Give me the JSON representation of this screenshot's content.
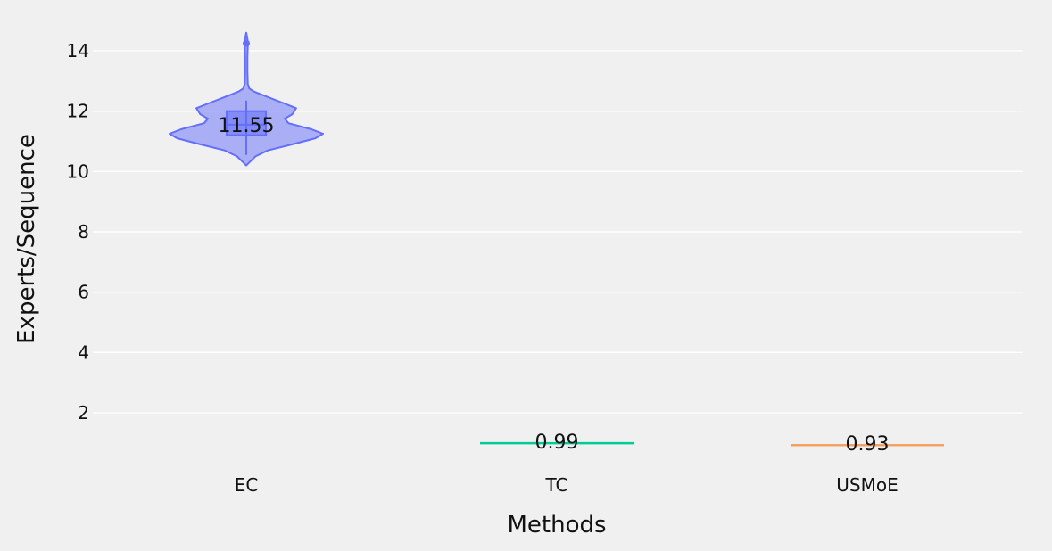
{
  "chart_data": {
    "type": "violin",
    "title": "",
    "xlabel": "Methods",
    "ylabel": "Experts/Sequence",
    "ylim": [
      0,
      15
    ],
    "yticks": [
      2,
      4,
      6,
      8,
      10,
      12,
      14
    ],
    "grid": true,
    "categories": [
      "EC",
      "TC",
      "USMoE"
    ],
    "series": [
      {
        "category": "EC",
        "median": 11.55,
        "median_label": "11.55",
        "q1": 11.2,
        "q3": 12.0,
        "whisker_low": 10.55,
        "whisker_high": 12.35,
        "min": 10.2,
        "max": 14.6,
        "outlier": 14.25,
        "color": "#636efa",
        "fill": "rgba(99,110,250,0.5)",
        "density": [
          [
            10.2,
            0.0
          ],
          [
            10.3,
            0.04
          ],
          [
            10.5,
            0.12
          ],
          [
            10.7,
            0.28
          ],
          [
            10.9,
            0.6
          ],
          [
            11.1,
            0.9
          ],
          [
            11.25,
            1.0
          ],
          [
            11.4,
            0.85
          ],
          [
            11.6,
            0.55
          ],
          [
            11.75,
            0.5
          ],
          [
            11.9,
            0.6
          ],
          [
            12.1,
            0.65
          ],
          [
            12.3,
            0.45
          ],
          [
            12.5,
            0.25
          ],
          [
            12.65,
            0.1
          ],
          [
            12.75,
            0.04
          ],
          [
            12.9,
            0.02
          ],
          [
            13.3,
            0.015
          ],
          [
            13.8,
            0.015
          ],
          [
            14.2,
            0.02
          ],
          [
            14.4,
            0.015
          ],
          [
            14.6,
            0.0
          ]
        ]
      },
      {
        "category": "TC",
        "median": 0.99,
        "median_label": "0.99",
        "color": "#00cc96"
      },
      {
        "category": "USMoE",
        "median": 0.93,
        "median_label": "0.93",
        "color": "#f4a261"
      }
    ]
  }
}
